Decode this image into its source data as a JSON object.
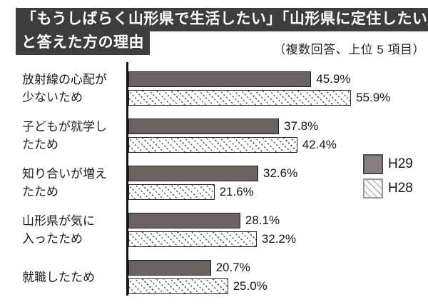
{
  "title": {
    "line1": "「もうしばらく山形県で生活したい」「山形県に定住したい」",
    "line2": "と答えた方の理由",
    "note": "（複数回答、上位 5 項目）"
  },
  "legend": [
    {
      "label": "H29",
      "style": "solid"
    },
    {
      "label": "H28",
      "style": "hatched-diagonal"
    }
  ],
  "colors": {
    "title_bg": "#3d3d3d",
    "bar_solid": "#6b6260",
    "legend_solid": "#87807f",
    "hatch_line": "#5a5a5a",
    "axis": "#161616"
  },
  "rows": [
    {
      "label": "放射線の心配が\n少ないため",
      "h29": "45.9%",
      "h28": "55.9%"
    },
    {
      "label": "子どもが就学し\nたため",
      "h29": "37.8%",
      "h28": "42.4%"
    },
    {
      "label": "知り合いが増え\nたため",
      "h29": "32.6%",
      "h28": "21.6%"
    },
    {
      "label": "山形県が気に\n入ったため",
      "h29": "28.1%",
      "h28": "32.2%"
    },
    {
      "label": "就職したため",
      "h29": "20.7%",
      "h28": "25.0%"
    }
  ],
  "chart_data": {
    "type": "bar",
    "orientation": "horizontal",
    "title": "「もうしばらく山形県で生活したい」「山形県に定住したい」と答えた方の理由",
    "subtitle": "（複数回答、上位 5 項目）",
    "categories": [
      "放射線の心配が少ないため",
      "子どもが就学したため",
      "知り合いが増えたため",
      "山形県が気に入ったため",
      "就職したため"
    ],
    "series": [
      {
        "name": "H29",
        "style": "solid",
        "values": [
          45.9,
          37.8,
          32.6,
          28.1,
          20.7
        ]
      },
      {
        "name": "H28",
        "style": "hatched",
        "values": [
          55.9,
          42.4,
          21.6,
          32.2,
          25.0
        ]
      }
    ],
    "unit": "%",
    "xlim": [
      0,
      60
    ],
    "grid": false,
    "value_labels_shown": true,
    "legend_position": "right-middle"
  }
}
